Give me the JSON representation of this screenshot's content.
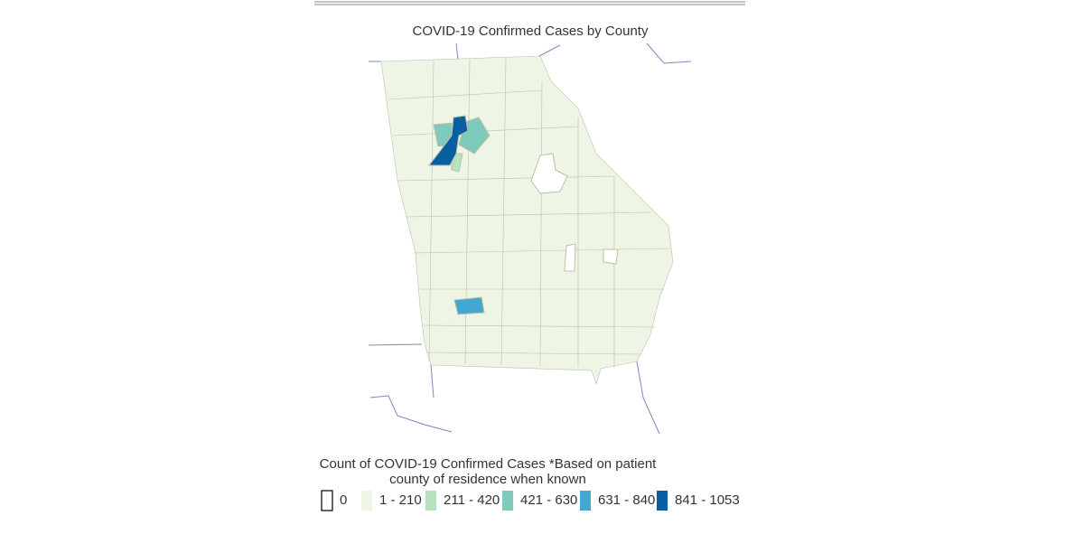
{
  "title": "COVID-19 Confirmed Cases by County",
  "legend": {
    "title": [
      "Count of COVID-19 Confirmed Cases *Based on patient",
      "county of residence when known"
    ],
    "items": [
      {
        "label": "0",
        "color": "#ffffff"
      },
      {
        "label": "1 - 210",
        "color": "#eef5e4"
      },
      {
        "label": "211 - 420",
        "color": "#b6e2c0"
      },
      {
        "label": "421 - 630",
        "color": "#7ecabc"
      },
      {
        "label": "631 - 840",
        "color": "#45a7d0"
      },
      {
        "label": "841 - 1053",
        "color": "#0a5fa3"
      }
    ]
  }
}
